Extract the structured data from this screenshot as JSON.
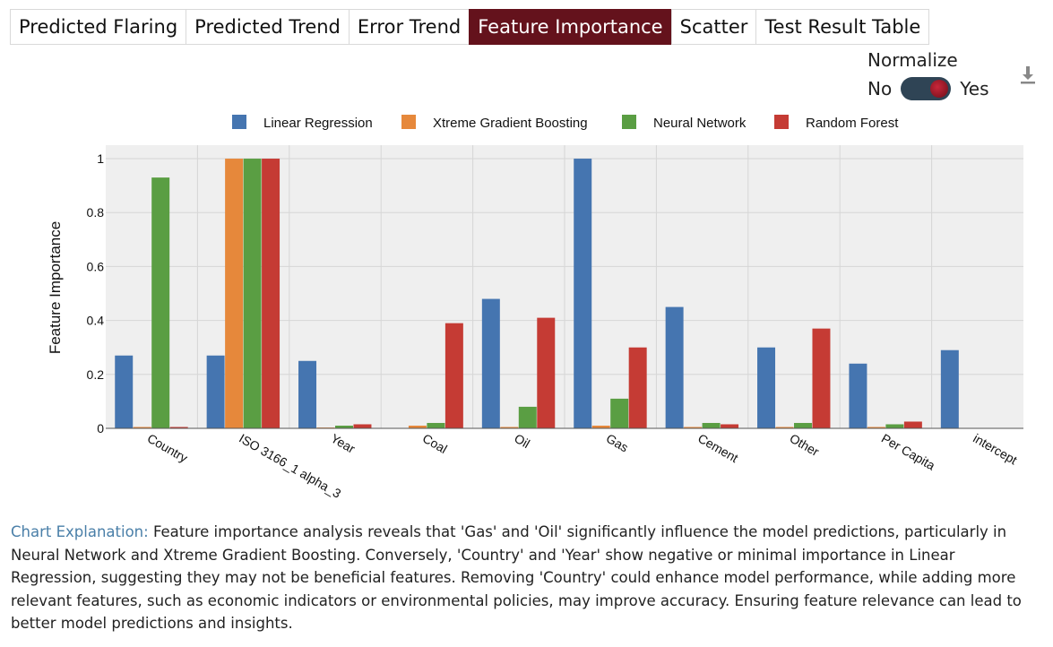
{
  "tabs": [
    "Predicted Flaring",
    "Predicted Trend",
    "Error Trend",
    "Feature Importance",
    "Scatter",
    "Test Result Table"
  ],
  "active_tab": 3,
  "normalize": {
    "title": "Normalize",
    "off_label": "No",
    "on_label": "Yes",
    "value": true
  },
  "download_icon": "download-icon",
  "colors": {
    "active_tab": "#64121c",
    "toggle": "#2f4455"
  },
  "chart_data": {
    "type": "bar",
    "categories": [
      "Country",
      "ISO 3166_1 alpha_3",
      "Year",
      "Coal",
      "Oil",
      "Gas",
      "Cement",
      "Other",
      "Per Capita",
      "intercept"
    ],
    "series": [
      {
        "name": "Linear Regression",
        "color": "#4575b0",
        "values": [
          0.27,
          0.27,
          0.25,
          0,
          0.48,
          1.0,
          0.45,
          0.3,
          0.24,
          0.29
        ]
      },
      {
        "name": "Xtreme Gradient Boosting",
        "color": "#e6883b",
        "values": [
          0.005,
          1.0,
          0.003,
          0.01,
          0.005,
          0.01,
          0.005,
          0.005,
          0.005,
          0
        ]
      },
      {
        "name": "Neural Network",
        "color": "#5a9e43",
        "values": [
          0.93,
          1.0,
          0.01,
          0.02,
          0.08,
          0.11,
          0.02,
          0.02,
          0.015,
          0
        ]
      },
      {
        "name": "Random Forest",
        "color": "#c53b34",
        "values": [
          0.005,
          1.0,
          0.015,
          0.39,
          0.41,
          0.3,
          0.015,
          0.37,
          0.025,
          0
        ]
      }
    ],
    "xlabel": "",
    "ylabel": "Feature Importance",
    "ylim": [
      0,
      1.05
    ],
    "yticks": [
      0,
      0.2,
      0.4,
      0.6,
      0.8,
      1
    ],
    "ytick_labels": [
      "0",
      "0.2",
      "0.4",
      "0.6",
      "0.8",
      "1"
    ],
    "grid": true,
    "legend_position": "top"
  },
  "explanation": {
    "label": "Chart Explanation:",
    "text": "Feature importance analysis reveals that 'Gas' and 'Oil' significantly influence the model predictions, particularly in Neural Network and Xtreme Gradient Boosting. Conversely, 'Country' and 'Year' show negative or minimal importance in Linear Regression, suggesting they may not be beneficial features. Removing 'Country' could enhance model performance, while adding more relevant features, such as economic indicators or environmental policies, may improve accuracy. Ensuring feature relevance can lead to better model predictions and insights."
  }
}
